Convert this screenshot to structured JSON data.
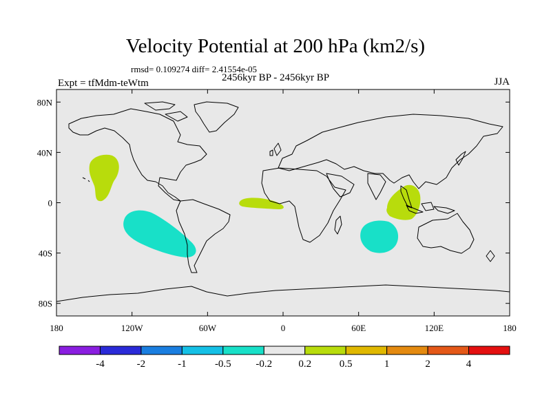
{
  "title": "Velocity Potential at 200 hPa (km2/s)",
  "stats": "rmsd= 0.109274 diff= 2.41554e-05",
  "period": "2456kyr BP - 2456kyr BP",
  "experiment": "Expt = tfMdm-teWtm",
  "season": "JJA",
  "map": {
    "lon_range": [
      -180,
      180
    ],
    "lat_range": [
      -90,
      90
    ],
    "background_color": "#e8e8e8",
    "lat_ticks": [
      {
        "label": "80N",
        "lat": 80
      },
      {
        "label": "40N",
        "lat": 40
      },
      {
        "label": "0",
        "lat": 0
      },
      {
        "label": "40S",
        "lat": -40
      },
      {
        "label": "80S",
        "lat": -80
      }
    ],
    "lon_ticks": [
      {
        "label": "180",
        "lon": -180
      },
      {
        "label": "120W",
        "lon": -120
      },
      {
        "label": "60W",
        "lon": -60
      },
      {
        "label": "0",
        "lon": 0
      },
      {
        "label": "60E",
        "lon": 60
      },
      {
        "label": "120E",
        "lon": 120
      },
      {
        "label": "180",
        "lon": 180
      }
    ]
  },
  "colorbar": {
    "colors": [
      "#8a1ee0",
      "#2a2ad8",
      "#1a7ee0",
      "#15c0e6",
      "#18e0c8",
      "#e8e8e8",
      "#b8dc0c",
      "#e0b800",
      "#e48a10",
      "#e45818",
      "#e41010"
    ],
    "labels": [
      "-4",
      "-2",
      "-1",
      "-0.5",
      "-0.2",
      "0.2",
      "0.5",
      "1",
      "2",
      "4"
    ]
  },
  "anomalies": [
    {
      "name": "positive-anomaly-north-pacific",
      "value": "0.2 to 0.5",
      "color": "#b8dc0c"
    },
    {
      "name": "positive-anomaly-tropical-atlantic",
      "value": "0.2 to 0.5",
      "color": "#b8dc0c"
    },
    {
      "name": "positive-anomaly-indian-ocean",
      "value": "0.2 to 0.5",
      "color": "#b8dc0c"
    },
    {
      "name": "negative-anomaly-south-pacific",
      "value": "-0.5 to -0.2",
      "color": "#18e0c8"
    },
    {
      "name": "negative-anomaly-south-indian",
      "value": "-0.5 to -0.2",
      "color": "#18e0c8"
    }
  ]
}
